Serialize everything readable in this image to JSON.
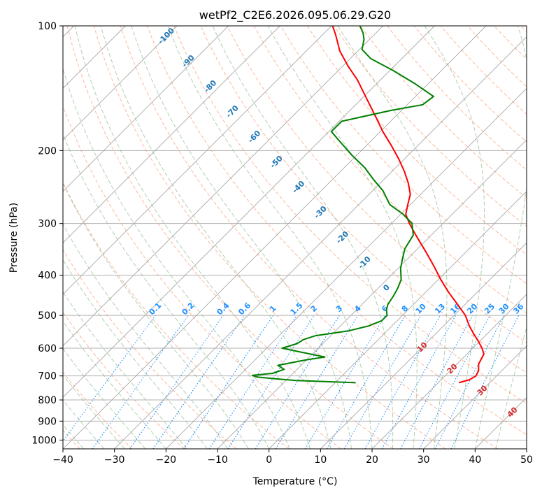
{
  "chart_data": {
    "type": "line",
    "title": "wetPf2_C2E6.2026.095.06.29.G20",
    "xlabel": "Temperature (°C)",
    "ylabel": "Pressure (hPa)",
    "xlim": [
      -40,
      50
    ],
    "ylim": [
      1050,
      100
    ],
    "x_ticks": [
      -40,
      -30,
      -20,
      -10,
      0,
      10,
      20,
      30,
      40,
      50
    ],
    "x_tick_labels": [
      "−40",
      "−30",
      "−20",
      "−10",
      "0",
      "10",
      "20",
      "30",
      "40",
      "50"
    ],
    "y_ticks": [
      100,
      200,
      300,
      400,
      500,
      600,
      700,
      800,
      900,
      1000
    ],
    "y_tick_labels": [
      "100",
      "200",
      "300",
      "400",
      "500",
      "600",
      "700",
      "800",
      "900",
      "1000"
    ],
    "skew_degrees": 45,
    "grid": true,
    "colors": {
      "temperature": "#ff0000",
      "dewpoint": "#008000",
      "isotherm": "#999999",
      "dry_adiabat": "#ffa07a",
      "moist_adiabat": "#8fbc8f",
      "mixing_ratio": "#1e90ff",
      "label_blue": "#1f77b4",
      "label_mix": "#1e90ff",
      "label_red": "#d62728"
    },
    "series": [
      {
        "name": "Temperature",
        "color": "#ff0000",
        "points": [
          {
            "p": 727,
            "t": 24.0
          },
          {
            "p": 715,
            "t": 25.5
          },
          {
            "p": 700,
            "t": 26.0
          },
          {
            "p": 680,
            "t": 25.5
          },
          {
            "p": 655,
            "t": 24.2
          },
          {
            "p": 620,
            "t": 23.3
          },
          {
            "p": 600,
            "t": 21.8
          },
          {
            "p": 580,
            "t": 20.0
          },
          {
            "p": 555,
            "t": 17.5
          },
          {
            "p": 530,
            "t": 15.0
          },
          {
            "p": 500,
            "t": 12.2
          },
          {
            "p": 470,
            "t": 8.5
          },
          {
            "p": 440,
            "t": 4.5
          },
          {
            "p": 410,
            "t": 0.5
          },
          {
            "p": 380,
            "t": -3.5
          },
          {
            "p": 350,
            "t": -8.0
          },
          {
            "p": 320,
            "t": -13.0
          },
          {
            "p": 300,
            "t": -16.5
          },
          {
            "p": 285,
            "t": -19.0
          },
          {
            "p": 270,
            "t": -20.5
          },
          {
            "p": 255,
            "t": -22.0
          },
          {
            "p": 240,
            "t": -24.5
          },
          {
            "p": 225,
            "t": -27.5
          },
          {
            "p": 210,
            "t": -31.0
          },
          {
            "p": 195,
            "t": -35.0
          },
          {
            "p": 180,
            "t": -39.5
          },
          {
            "p": 165,
            "t": -44.0
          },
          {
            "p": 150,
            "t": -49.0
          },
          {
            "p": 135,
            "t": -54.5
          },
          {
            "p": 125,
            "t": -59.0
          },
          {
            "p": 115,
            "t": -63.5
          },
          {
            "p": 105,
            "t": -67.5
          },
          {
            "p": 100,
            "t": -69.8
          }
        ]
      },
      {
        "name": "Dewpoint",
        "color": "#008000",
        "points": [
          {
            "p": 727,
            "t": 4.0
          },
          {
            "p": 718,
            "t": -8.0
          },
          {
            "p": 712,
            "t": -12.0
          },
          {
            "p": 705,
            "t": -16.0
          },
          {
            "p": 698,
            "t": -17.5
          },
          {
            "p": 690,
            "t": -14.0
          },
          {
            "p": 675,
            "t": -12.5
          },
          {
            "p": 660,
            "t": -14.5
          },
          {
            "p": 640,
            "t": -10.0
          },
          {
            "p": 630,
            "t": -7.0
          },
          {
            "p": 615,
            "t": -12.0
          },
          {
            "p": 600,
            "t": -17.0
          },
          {
            "p": 585,
            "t": -15.0
          },
          {
            "p": 572,
            "t": -14.5
          },
          {
            "p": 560,
            "t": -13.0
          },
          {
            "p": 545,
            "t": -7.5
          },
          {
            "p": 530,
            "t": -4.5
          },
          {
            "p": 515,
            "t": -3.0
          },
          {
            "p": 500,
            "t": -3.0
          },
          {
            "p": 485,
            "t": -4.2
          },
          {
            "p": 470,
            "t": -5.0
          },
          {
            "p": 450,
            "t": -5.5
          },
          {
            "p": 430,
            "t": -6.2
          },
          {
            "p": 410,
            "t": -7.2
          },
          {
            "p": 385,
            "t": -9.5
          },
          {
            "p": 365,
            "t": -11.0
          },
          {
            "p": 345,
            "t": -12.5
          },
          {
            "p": 320,
            "t": -13.5
          },
          {
            "p": 300,
            "t": -16.0
          },
          {
            "p": 285,
            "t": -19.5
          },
          {
            "p": 270,
            "t": -24.0
          },
          {
            "p": 250,
            "t": -28.0
          },
          {
            "p": 235,
            "t": -32.0
          },
          {
            "p": 220,
            "t": -36.0
          },
          {
            "p": 205,
            "t": -41.0
          },
          {
            "p": 190,
            "t": -46.0
          },
          {
            "p": 180,
            "t": -49.5
          },
          {
            "p": 170,
            "t": -49.5
          },
          {
            "p": 160,
            "t": -42.0
          },
          {
            "p": 155,
            "t": -37.0
          },
          {
            "p": 148,
            "t": -36.5
          },
          {
            "p": 138,
            "t": -42.5
          },
          {
            "p": 128,
            "t": -49.5
          },
          {
            "p": 120,
            "t": -56.0
          },
          {
            "p": 114,
            "t": -59.5
          },
          {
            "p": 108,
            "t": -61.0
          },
          {
            "p": 104,
            "t": -62.5
          },
          {
            "p": 100,
            "t": -64.5
          }
        ]
      }
    ],
    "isotherm_labels": [
      {
        "text": "-100",
        "t": -100
      },
      {
        "text": "-90",
        "t": -90
      },
      {
        "text": "-80",
        "t": -80
      },
      {
        "text": "-70",
        "t": -70
      },
      {
        "text": "-60",
        "t": -60
      },
      {
        "text": "-50",
        "t": -50
      },
      {
        "text": "-40",
        "t": -40
      },
      {
        "text": "-30",
        "t": -30
      },
      {
        "text": "-20",
        "t": -20
      },
      {
        "text": "-10",
        "t": -10
      },
      {
        "text": "0",
        "t": 0
      }
    ],
    "theta_labels": [
      {
        "text": "10",
        "t": 10
      },
      {
        "text": "20",
        "t": 20
      },
      {
        "text": "30",
        "t": 30
      },
      {
        "text": "40",
        "t": 40
      }
    ],
    "mixing_ratio_labels": [
      "0.1",
      "0.2",
      "0.4",
      "0.6",
      "1",
      "1.5",
      "2",
      "3",
      "4",
      "6",
      "8",
      "10",
      "13",
      "16",
      "20",
      "25",
      "30",
      "36"
    ],
    "mixing_ratio_values": [
      0.1,
      0.2,
      0.4,
      0.6,
      1,
      1.5,
      2,
      3,
      4,
      6,
      8,
      10,
      13,
      16,
      20,
      25,
      30,
      36
    ]
  }
}
